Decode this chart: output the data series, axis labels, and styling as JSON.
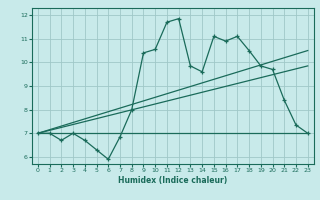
{
  "xlabel": "Humidex (Indice chaleur)",
  "ylabel": "",
  "bg_color": "#c8eaea",
  "grid_color": "#a0c8c8",
  "line_color": "#1a6b5a",
  "xlim": [
    -0.5,
    23.5
  ],
  "ylim": [
    5.7,
    12.3
  ],
  "xticks": [
    0,
    1,
    2,
    3,
    4,
    5,
    6,
    7,
    8,
    9,
    10,
    11,
    12,
    13,
    14,
    15,
    16,
    17,
    18,
    19,
    20,
    21,
    22,
    23
  ],
  "yticks": [
    6,
    7,
    8,
    9,
    10,
    11,
    12
  ],
  "main_x": [
    0,
    1,
    2,
    3,
    4,
    5,
    6,
    7,
    8,
    9,
    10,
    11,
    12,
    13,
    14,
    15,
    16,
    17,
    18,
    19,
    20,
    21,
    22,
    23
  ],
  "main_y": [
    7.0,
    7.0,
    6.7,
    7.0,
    6.7,
    6.3,
    5.9,
    6.85,
    8.0,
    10.4,
    10.55,
    11.7,
    11.85,
    9.85,
    9.6,
    11.1,
    10.9,
    11.1,
    10.5,
    9.85,
    9.7,
    8.4,
    7.35,
    7.0
  ],
  "line1_x": [
    0,
    23
  ],
  "line1_y": [
    7.0,
    7.0
  ],
  "line2_x": [
    0,
    23
  ],
  "line2_y": [
    7.0,
    9.85
  ],
  "line3_x": [
    0,
    23
  ],
  "line3_y": [
    7.0,
    10.5
  ]
}
